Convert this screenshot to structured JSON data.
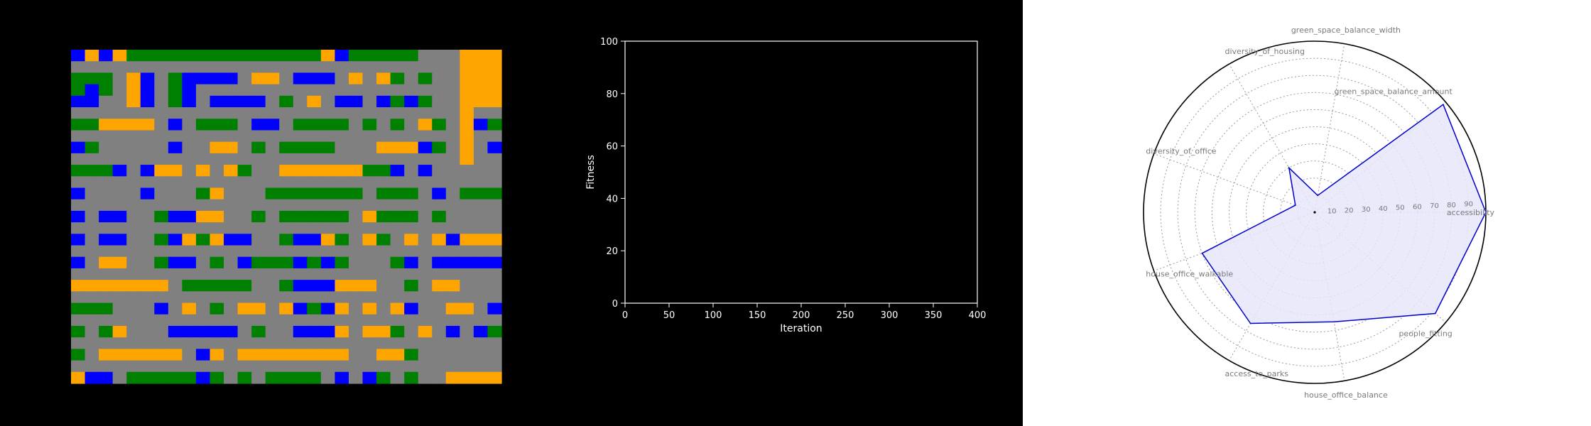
{
  "palette": {
    "road": "#808080",
    "residential": "#FFA500",
    "park": "#008000",
    "office": "#0000FF",
    "axis": "#FFFFFF",
    "radar_line": "#0000CC",
    "radar_fill": "#E6E6FA",
    "radar_grid": "#999999",
    "radar_label": "#7A7A7A"
  },
  "chart_data": [
    {
      "type": "heatmap",
      "legend": {
        "0": "road",
        "1": "residential",
        "2": "park",
        "3": "office"
      },
      "rows": [
        "3131222222222222221322222000111",
        "0000000000000000000000000000111",
        "2220130233330110333010120200111",
        "2320130230000000000000000000111",
        "3300130230333302010330323200111",
        "0000000000000000000000000000100",
        "2211110302220330222202020120132",
        "0000000000000000000000000000100",
        "3200000300110202222000111320103",
        "0000000000000000000000000000100",
        "2223031101012001111112230300000",
        "0000000000000000000000000000000",
        "3000030002100022222220222030222",
        "0000000000000000000000000000000",
        "3033002331100202222201222020000",
        "0000000000000000000000000000000",
        "3033002312133002331201201013111",
        "0000000000000000000000000000000",
        "3011002330203222323200023033333",
        "0000000000000000000000000000000",
        "1111111022222002333111002011000",
        "0000000000000000000000000000000",
        "2220003010201101323101013001103",
        "0000000000000000000000000000000",
        "2021000333330200333101120103032",
        "0000000000000000000000000000000",
        "2011111103101111111100112000000",
        "0000000000000000000000000000000",
        "1330222223202022220303202001111"
      ]
    },
    {
      "type": "line",
      "xlabel": "Iteration",
      "ylabel": "Fitness",
      "xlim": [
        0,
        400
      ],
      "ylim": [
        0,
        100
      ],
      "xticks": [
        0,
        50,
        100,
        150,
        200,
        250,
        300,
        350,
        400
      ],
      "yticks": [
        0,
        20,
        40,
        60,
        80,
        100
      ],
      "series": []
    },
    {
      "type": "radar",
      "rlim": [
        0,
        100
      ],
      "rticks": [
        10,
        20,
        30,
        40,
        50,
        60,
        70,
        80,
        90
      ],
      "categories": [
        "accessibility",
        "green_space_balance_amount",
        "green_space_balance_width",
        "diversity_of_housing",
        "diversity_of_office",
        "house_office_walkable",
        "access_to_parks",
        "house_office_balance",
        "people_fitting"
      ],
      "category_labels": [
        "accessibility",
        "green_space_balance_amount",
        "green_space_balance_width",
        "diversity_of_housing",
        "diversity_of_office",
        "house_office_walkable",
        "access_to_parks",
        "house_office_balance",
        "people_fitting"
      ],
      "values": [
        100,
        98,
        10,
        30,
        12,
        70,
        75,
        65,
        92
      ]
    }
  ]
}
